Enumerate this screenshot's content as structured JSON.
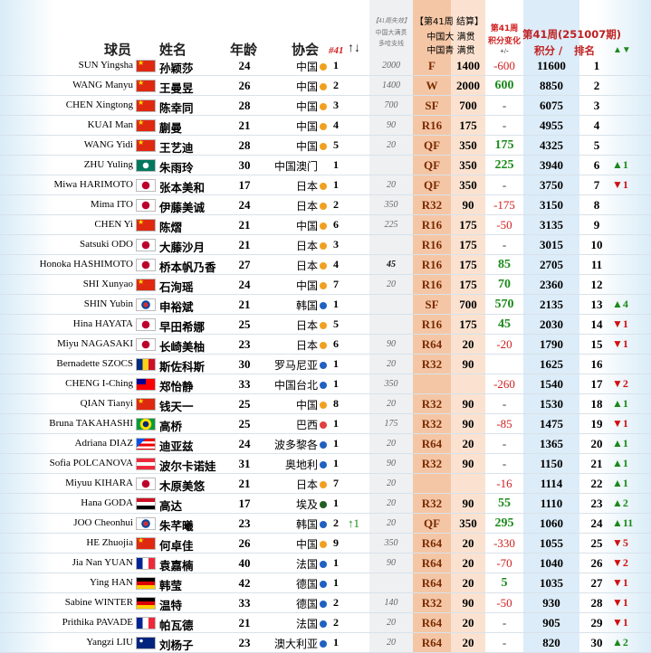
{
  "header": {
    "player": "球员",
    "name": "姓名",
    "age": "年龄",
    "assoc": "协会",
    "assoc_rank": "#41",
    "assoc_move": "↑↓",
    "expired_title": "【41周失效】",
    "expired_1": "中国大满贯",
    "expired_2": "多哈支线",
    "result_title": "【第41周 结算】",
    "result_1": "中国大 满贯",
    "result_2": "中国青 满贯",
    "change_1": "第41周",
    "change_2": "积分变化",
    "change_3": "+/-",
    "points_title": "第41周(251007期)",
    "points": "积分 /",
    "rank": "排名",
    "rank_move": "▲▼"
  },
  "rows": [
    {
      "en": "SUN Yingsha",
      "zh": "孙颖莎",
      "age": 24,
      "assoc": "中国",
      "assoc_rank": 1,
      "expired": 2000,
      "round": "F",
      "pts": 1400,
      "change": -600,
      "points": 11600,
      "rank": 1
    },
    {
      "en": "WANG Manyu",
      "zh": "王曼昱",
      "age": 26,
      "assoc": "中国",
      "assoc_rank": 2,
      "expired": 1400,
      "round": "W",
      "pts": 2000,
      "change": 600,
      "points": 8850,
      "rank": 2
    },
    {
      "en": "CHEN Xingtong",
      "zh": "陈幸同",
      "age": 28,
      "assoc": "中国",
      "assoc_rank": 3,
      "expired": 700,
      "round": "SF",
      "pts": 700,
      "change": "-",
      "points": 6075,
      "rank": 3
    },
    {
      "en": "KUAI Man",
      "zh": "蒯曼",
      "age": 21,
      "assoc": "中国",
      "assoc_rank": 4,
      "expired": 90,
      "round": "R16",
      "pts": 175,
      "change": "-",
      "points": 4955,
      "rank": 4
    },
    {
      "en": "WANG Yidi",
      "zh": "王艺迪",
      "age": 28,
      "assoc": "中国",
      "assoc_rank": 5,
      "expired": 20,
      "round": "QF",
      "pts": 350,
      "change": 175,
      "points": 4325,
      "rank": 5
    },
    {
      "en": "ZHU Yuling",
      "zh": "朱雨玲",
      "age": 30,
      "assoc": "中国澳门",
      "assoc_rank": 1,
      "round": "QF",
      "pts": 350,
      "change": 225,
      "points": 3940,
      "rank": 6,
      "rank_change": "▲1"
    },
    {
      "en": "Miwa HARIMOTO",
      "zh": "张本美和",
      "age": 17,
      "assoc": "日本",
      "assoc_rank": 1,
      "expired": 20,
      "round": "QF",
      "pts": 350,
      "change": "-",
      "points": 3750,
      "rank": 7,
      "rank_change": "▼1"
    },
    {
      "en": "Mima ITO",
      "zh": "伊藤美诚",
      "age": 24,
      "assoc": "日本",
      "assoc_rank": 2,
      "expired": 350,
      "round": "R32",
      "pts": 90,
      "change": -175,
      "points": 3150,
      "rank": 8
    },
    {
      "en": "CHEN Yi",
      "zh": "陈熠",
      "age": 21,
      "assoc": "中国",
      "assoc_rank": 6,
      "expired": 225,
      "round": "R16",
      "pts": 175,
      "change": -50,
      "points": 3135,
      "rank": 9
    },
    {
      "en": "Satsuki ODO",
      "zh": "大藤沙月",
      "age": 21,
      "assoc": "日本",
      "assoc_rank": 3,
      "round": "R16",
      "pts": 175,
      "change": "-",
      "points": 3015,
      "rank": 10
    },
    {
      "en": "Honoka HASHIMOTO",
      "zh": "桥本帆乃香",
      "age": 27,
      "assoc": "日本",
      "assoc_rank": 4,
      "expired": 45,
      "round": "R16",
      "pts": 175,
      "change": 85,
      "points": 2705,
      "rank": 11
    },
    {
      "en": "SHI Xunyao",
      "zh": "石洵瑶",
      "age": 24,
      "assoc": "中国",
      "assoc_rank": 7,
      "expired": 20,
      "round": "R16",
      "pts": 175,
      "change": 70,
      "points": 2360,
      "rank": 12
    },
    {
      "en": "SHIN Yubin",
      "zh": "申裕斌",
      "age": 21,
      "assoc": "韩国",
      "assoc_rank": 1,
      "round": "SF",
      "pts": 700,
      "change": 570,
      "points": 2135,
      "rank": 13,
      "rank_change": "▲4"
    },
    {
      "en": "Hina HAYATA",
      "zh": "早田希娜",
      "age": 25,
      "assoc": "日本",
      "assoc_rank": 5,
      "round": "R16",
      "pts": 175,
      "change": 45,
      "points": 2030,
      "rank": 14,
      "rank_change": "▼1"
    },
    {
      "en": "Miyu NAGASAKI",
      "zh": "长崎美柚",
      "age": 23,
      "assoc": "日本",
      "assoc_rank": 6,
      "expired": 90,
      "round": "R64",
      "pts": 20,
      "change": -20,
      "points": 1790,
      "rank": 15,
      "rank_change": "▼1"
    },
    {
      "en": "Bernadette SZOCS",
      "zh": "斯佐科斯",
      "age": 30,
      "assoc": "罗马尼亚",
      "assoc_rank": 1,
      "expired": 20,
      "round": "R32",
      "pts": 90,
      "points": 1625,
      "rank": 16
    },
    {
      "en": "CHENG I-Ching",
      "zh": "郑怡静",
      "age": 33,
      "assoc": "中国台北",
      "assoc_rank": 1,
      "expired": 350,
      "change": -260,
      "points": 1540,
      "rank": 17,
      "rank_change": "▼2"
    },
    {
      "en": "QIAN Tianyi",
      "zh": "钱天一",
      "age": 25,
      "assoc": "中国",
      "assoc_rank": 8,
      "expired": 20,
      "round": "R32",
      "pts": 90,
      "change": "-",
      "points": 1530,
      "rank": 18,
      "rank_change": "▲1"
    },
    {
      "en": "Bruna TAKAHASHI",
      "zh": "高桥",
      "age": 25,
      "assoc": "巴西",
      "assoc_rank": 1,
      "expired": 175,
      "round": "R32",
      "pts": 90,
      "change": -85,
      "points": 1475,
      "rank": 19,
      "rank_change": "▼1"
    },
    {
      "en": "Adriana DIAZ",
      "zh": "迪亚兹",
      "age": 24,
      "assoc": "波多黎各",
      "assoc_rank": 1,
      "expired": 20,
      "round": "R64",
      "pts": 20,
      "change": "-",
      "points": 1365,
      "rank": 20,
      "rank_change": "▲1"
    },
    {
      "en": "Sofia POLCANOVA",
      "zh": "波尔卡诺娃",
      "age": 31,
      "assoc": "奥地利",
      "assoc_rank": 1,
      "expired": 90,
      "round": "R32",
      "pts": 90,
      "change": "-",
      "points": 1150,
      "rank": 21,
      "rank_change": "▲1"
    },
    {
      "en": "Miyuu KIHARA",
      "zh": "木原美悠",
      "age": 21,
      "assoc": "日本",
      "assoc_rank": 7,
      "expired": 20,
      "change": -16,
      "points": 1114,
      "rank": 22,
      "rank_change": "▲1"
    },
    {
      "en": "Hana GODA",
      "zh": "高达",
      "age": 17,
      "assoc": "埃及",
      "assoc_rank": 1,
      "expired": 20,
      "round": "R32",
      "pts": 90,
      "change": 55,
      "points": 1110,
      "rank": 23,
      "rank_change": "▲2"
    },
    {
      "en": "JOO Cheonhui",
      "zh": "朱芊曦",
      "age": 23,
      "assoc": "韩国",
      "assoc_rank": 2,
      "assoc_move": "↑1",
      "expired": 20,
      "round": "QF",
      "pts": 350,
      "change": 295,
      "points": 1060,
      "rank": 24,
      "rank_change": "▲11"
    },
    {
      "en": "HE Zhuojia",
      "zh": "何卓佳",
      "age": 26,
      "assoc": "中国",
      "assoc_rank": 9,
      "expired": 350,
      "round": "R64",
      "pts": 20,
      "change": -330,
      "points": 1055,
      "rank": 25,
      "rank_change": "▼5"
    },
    {
      "en": "Jia Nan YUAN",
      "zh": "袁嘉楠",
      "age": 40,
      "assoc": "法国",
      "assoc_rank": 1,
      "expired": 90,
      "round": "R64",
      "pts": 20,
      "change": -70,
      "points": 1040,
      "rank": 26,
      "rank_change": "▼2"
    },
    {
      "en": "Ying HAN",
      "zh": "韩莹",
      "age": 42,
      "assoc": "德国",
      "assoc_rank": 1,
      "round": "R64",
      "pts": 20,
      "change": 5,
      "points": 1035,
      "rank": 27,
      "rank_change": "▼1"
    },
    {
      "en": "Sabine WINTER",
      "zh": "温特",
      "age": 33,
      "assoc": "德国",
      "assoc_rank": 2,
      "expired": 140,
      "round": "R32",
      "pts": 90,
      "change": -50,
      "points": 930,
      "rank": 28,
      "rank_change": "▼1"
    },
    {
      "en": "Prithika PAVADE",
      "zh": "帕瓦德",
      "age": 21,
      "assoc": "法国",
      "assoc_rank": 2,
      "expired": 20,
      "round": "R64",
      "pts": 20,
      "change": "-",
      "points": 905,
      "rank": 29,
      "rank_change": "▼1"
    },
    {
      "en": "Yangzi LIU",
      "zh": "刘杨子",
      "age": 23,
      "assoc": "澳大利亚",
      "assoc_rank": 1,
      "expired": 20,
      "round": "R64",
      "pts": 20,
      "change": "-",
      "points": 820,
      "rank": 30,
      "rank_change": "▲2"
    }
  ]
}
